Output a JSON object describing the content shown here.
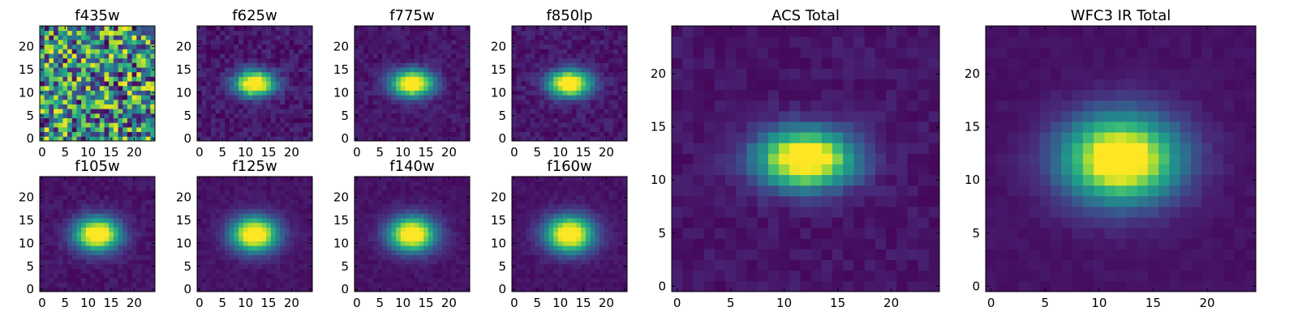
{
  "figure": {
    "colormap": "viridis",
    "colormap_stops": [
      "#440154",
      "#482878",
      "#3e4989",
      "#31688e",
      "#26828e",
      "#1f9e89",
      "#35b779",
      "#6ece58",
      "#b5de2b",
      "#fde725"
    ]
  },
  "chart_data": [
    {
      "type": "heatmap",
      "title": "f435w",
      "shape": [
        25,
        25
      ],
      "xticks": [
        "0",
        "5",
        "10",
        "15",
        "20"
      ],
      "yticks": [
        "0",
        "5",
        "10",
        "15",
        "20"
      ],
      "image": "noise",
      "center": [
        12,
        12
      ],
      "sigma_x": 0,
      "sigma_y": 0
    },
    {
      "type": "heatmap",
      "title": "f625w",
      "shape": [
        25,
        25
      ],
      "xticks": [
        "0",
        "5",
        "10",
        "15",
        "20"
      ],
      "yticks": [
        "0",
        "5",
        "10",
        "15",
        "20"
      ],
      "image": "gaussian-source",
      "center": [
        12,
        12
      ],
      "sigma_x": 3.0,
      "sigma_y": 1.9,
      "noise": 0.07
    },
    {
      "type": "heatmap",
      "title": "f775w",
      "shape": [
        25,
        25
      ],
      "xticks": [
        "0",
        "5",
        "10",
        "15",
        "20"
      ],
      "yticks": [
        "0",
        "5",
        "10",
        "15",
        "20"
      ],
      "image": "gaussian-source",
      "center": [
        12,
        12
      ],
      "sigma_x": 3.2,
      "sigma_y": 2.0,
      "noise": 0.05
    },
    {
      "type": "heatmap",
      "title": "f850lp",
      "shape": [
        25,
        25
      ],
      "xticks": [
        "0",
        "5",
        "10",
        "15",
        "20"
      ],
      "yticks": [
        "0",
        "5",
        "10",
        "15",
        "20"
      ],
      "image": "gaussian-source",
      "center": [
        12,
        12
      ],
      "sigma_x": 3.2,
      "sigma_y": 2.0,
      "noise": 0.06
    },
    {
      "type": "heatmap",
      "title": "f105w",
      "shape": [
        25,
        25
      ],
      "xticks": [
        "0",
        "5",
        "10",
        "15",
        "20"
      ],
      "yticks": [
        "0",
        "5",
        "10",
        "15",
        "20"
      ],
      "image": "gaussian-source",
      "center": [
        12,
        12
      ],
      "sigma_x": 3.4,
      "sigma_y": 2.5,
      "noise": 0.04
    },
    {
      "type": "heatmap",
      "title": "f125w",
      "shape": [
        25,
        25
      ],
      "xticks": [
        "0",
        "5",
        "10",
        "15",
        "20"
      ],
      "yticks": [
        "0",
        "5",
        "10",
        "15",
        "20"
      ],
      "image": "gaussian-source",
      "center": [
        12,
        12
      ],
      "sigma_x": 3.5,
      "sigma_y": 2.6,
      "noise": 0.03
    },
    {
      "type": "heatmap",
      "title": "f140w",
      "shape": [
        25,
        25
      ],
      "xticks": [
        "0",
        "5",
        "10",
        "15",
        "20"
      ],
      "yticks": [
        "0",
        "5",
        "10",
        "15",
        "20"
      ],
      "image": "gaussian-source",
      "center": [
        12,
        12
      ],
      "sigma_x": 3.5,
      "sigma_y": 2.6,
      "noise": 0.03
    },
    {
      "type": "heatmap",
      "title": "f160w",
      "shape": [
        25,
        25
      ],
      "xticks": [
        "0",
        "5",
        "10",
        "15",
        "20"
      ],
      "yticks": [
        "0",
        "5",
        "10",
        "15",
        "20"
      ],
      "image": "gaussian-source",
      "center": [
        12,
        12
      ],
      "sigma_x": 3.6,
      "sigma_y": 2.7,
      "noise": 0.03
    },
    {
      "type": "heatmap",
      "title": "ACS Total",
      "shape": [
        25,
        25
      ],
      "xticks": [
        "0",
        "5",
        "10",
        "15",
        "20"
      ],
      "yticks": [
        "0",
        "5",
        "10",
        "15",
        "20"
      ],
      "image": "gaussian-source",
      "center": [
        12,
        12
      ],
      "sigma_x": 3.1,
      "sigma_y": 1.9,
      "noise": 0.04
    },
    {
      "type": "heatmap",
      "title": "WFC3 IR Total",
      "shape": [
        25,
        25
      ],
      "xticks": [
        "0",
        "5",
        "10",
        "15",
        "20"
      ],
      "yticks": [
        "0",
        "5",
        "10",
        "15",
        "20"
      ],
      "image": "gaussian-source",
      "center": [
        12,
        12
      ],
      "sigma_x": 3.7,
      "sigma_y": 2.8,
      "noise": 0.02
    }
  ]
}
